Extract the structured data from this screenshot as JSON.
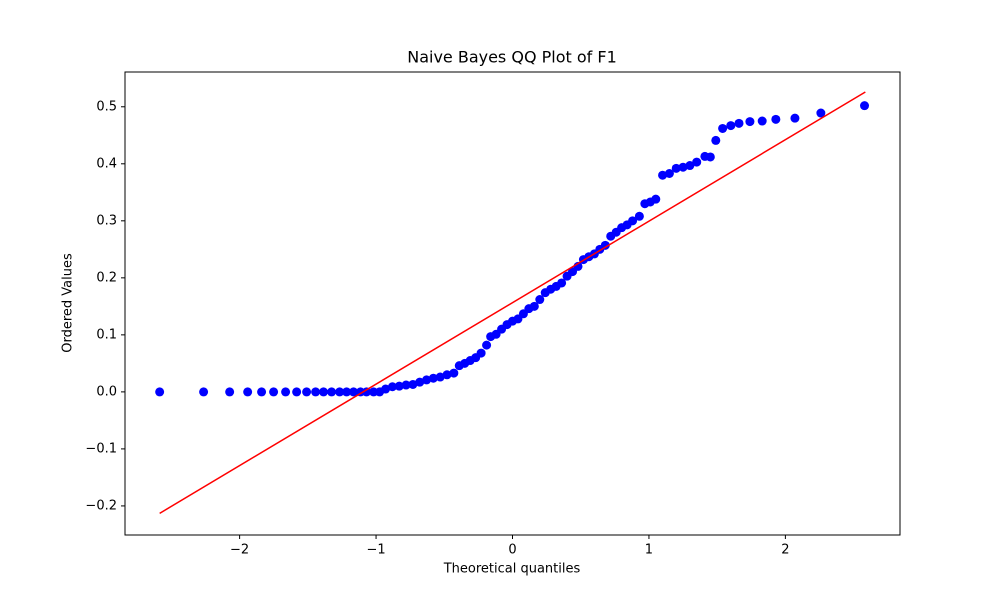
{
  "chart_data": {
    "type": "scatter",
    "title": "Naive Bayes QQ Plot of F1",
    "x_label": "Theoretical quantiles",
    "y_label": "Ordered Values",
    "xlim": [
      -2.84,
      2.84
    ],
    "ylim": [
      -0.251,
      0.561
    ],
    "xticks": [
      {
        "value": -2,
        "label": "−2"
      },
      {
        "value": -1,
        "label": "−1"
      },
      0,
      1,
      2
    ],
    "yticks": [
      {
        "value": -0.2,
        "label": "−0.2"
      },
      {
        "value": -0.1,
        "label": "−0.1"
      },
      {
        "value": 0,
        "label": "0.0"
      },
      0.1,
      0.2,
      0.3,
      0.4,
      0.5
    ],
    "series": [
      {
        "color": "#0000ff",
        "x": [
          -2.586,
          -2.264,
          -2.073,
          -1.941,
          -1.839,
          -1.751,
          -1.663,
          -1.582,
          -1.509,
          -1.443,
          -1.385,
          -1.326,
          -1.267,
          -1.216,
          -1.165,
          -1.114,
          -1.07,
          -1.018,
          -0.974,
          -0.93,
          -0.88,
          -0.83,
          -0.78,
          -0.73,
          -0.68,
          -0.63,
          -0.58,
          -0.53,
          -0.48,
          -0.43,
          -0.39,
          -0.35,
          -0.31,
          -0.27,
          -0.23,
          -0.19,
          -0.16,
          -0.12,
          -0.08,
          -0.04,
          0.0,
          0.04,
          0.08,
          0.12,
          0.16,
          0.2,
          0.24,
          0.28,
          0.32,
          0.36,
          0.4,
          0.44,
          0.48,
          0.52,
          0.56,
          0.6,
          0.64,
          0.68,
          0.72,
          0.76,
          0.8,
          0.84,
          0.88,
          0.93,
          0.97,
          1.01,
          1.05,
          1.1,
          1.15,
          1.2,
          1.25,
          1.3,
          1.35,
          1.41,
          1.45,
          1.49,
          1.54,
          1.6,
          1.66,
          1.74,
          1.83,
          1.93,
          2.07,
          2.26,
          2.58
        ],
        "values": [
          0,
          0,
          0,
          0,
          0,
          0,
          0,
          0,
          0,
          0,
          0,
          0,
          0,
          0,
          0,
          0,
          0,
          0,
          0,
          0.005,
          0.009,
          0.01,
          0.012,
          0.013,
          0.017,
          0.021,
          0.024,
          0.026,
          0.03,
          0.033,
          0.046,
          0.05,
          0.055,
          0.06,
          0.068,
          0.082,
          0.097,
          0.101,
          0.11,
          0.118,
          0.124,
          0.128,
          0.137,
          0.146,
          0.15,
          0.162,
          0.174,
          0.18,
          0.185,
          0.191,
          0.203,
          0.211,
          0.22,
          0.232,
          0.237,
          0.242,
          0.25,
          0.257,
          0.273,
          0.28,
          0.288,
          0.293,
          0.3,
          0.308,
          0.33,
          0.333,
          0.338,
          0.38,
          0.383,
          0.392,
          0.394,
          0.397,
          0.403,
          0.413,
          0.412,
          0.441,
          0.462,
          0.467,
          0.471,
          0.474,
          0.475,
          0.478,
          0.48,
          0.489,
          0.502
        ]
      },
      {
        "color": "#ff0000",
        "line": true,
        "x": [
          -2.586,
          2.586
        ],
        "values": [
          -0.213,
          0.526
        ]
      }
    ]
  }
}
